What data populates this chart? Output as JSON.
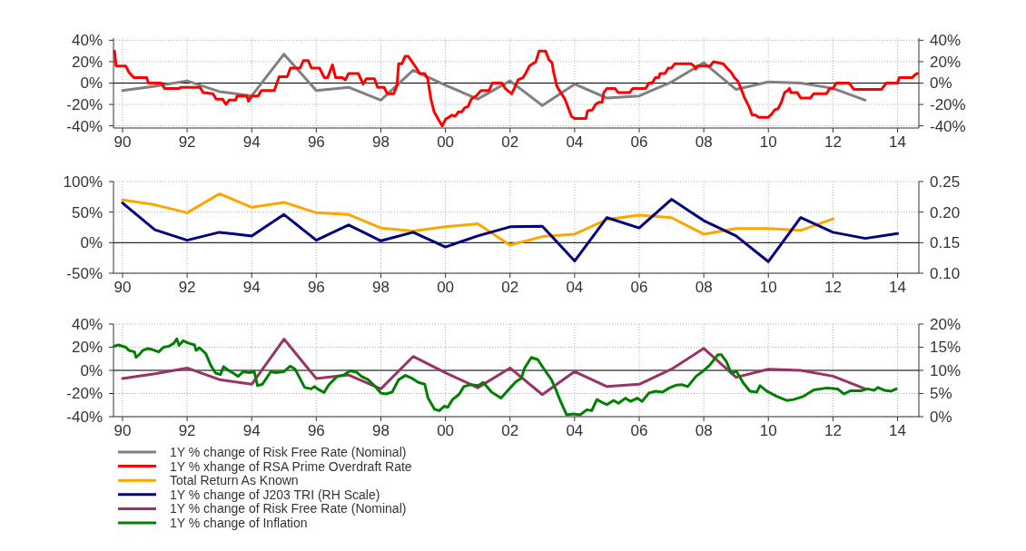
{
  "chart_data": [
    {
      "type": "line",
      "xlim": [
        1989.72,
        2014.66
      ],
      "xticks": [
        {
          "value": 1990,
          "label": "90"
        },
        {
          "value": 1992,
          "label": "92"
        },
        {
          "value": 1994,
          "label": "94"
        },
        {
          "value": 1996,
          "label": "96"
        },
        {
          "value": 1998,
          "label": "98"
        },
        {
          "value": 2000,
          "label": "00"
        },
        {
          "value": 2002,
          "label": "02"
        },
        {
          "value": 2004,
          "label": "04"
        },
        {
          "value": 2006,
          "label": "06"
        },
        {
          "value": 2008,
          "label": "08"
        },
        {
          "value": 2010,
          "label": "10"
        },
        {
          "value": 2012,
          "label": "12"
        },
        {
          "value": 2014,
          "label": "14"
        }
      ],
      "ylim": [
        -42,
        42
      ],
      "yticks": [
        {
          "value": -40,
          "label": "-40%"
        },
        {
          "value": -20,
          "label": "-20%"
        },
        {
          "value": 0,
          "label": "0%"
        },
        {
          "value": 20,
          "label": "20%"
        },
        {
          "value": 40,
          "label": "40%"
        }
      ],
      "y2lim": [
        -42,
        42
      ],
      "y2ticks": [
        {
          "value": -40,
          "label": "-40%"
        },
        {
          "value": -20,
          "label": "-20%"
        },
        {
          "value": 0,
          "label": "0%"
        },
        {
          "value": 20,
          "label": "20%"
        },
        {
          "value": 40,
          "label": "40%"
        }
      ],
      "grid": true,
      "legend": "bottom",
      "ref_lines": [
        {
          "axis": "y",
          "value": 0,
          "color": "#000000"
        }
      ],
      "series": [
        {
          "name": "1Y % change of Risk Free Rate (Nominal)",
          "color": "#808080",
          "x": [
            1990,
            1991,
            1992,
            1993,
            1994,
            1995,
            1996,
            1997,
            1998,
            1999,
            2000,
            2001,
            2002,
            2003,
            2004,
            2005,
            2006,
            2007,
            2008,
            2009,
            2010,
            2011,
            2012,
            2013
          ],
          "values": [
            -7,
            -3,
            2,
            -8,
            -12,
            27,
            -7,
            -4,
            -16,
            12,
            -2,
            -15,
            2,
            -21,
            -1,
            -14,
            -12,
            1,
            19,
            -6,
            1,
            0,
            -5,
            -16
          ]
        },
        {
          "name": "1Y % xhange of RSA Prime Overdraft Rate",
          "color": "#ff0000",
          "x": [
            1989.75,
            1989.8,
            1990.1,
            1990.2,
            1990.35,
            1990.75,
            1990.8,
            1991.2,
            1991.3,
            1991.75,
            1991.8,
            1992.4,
            1992.5,
            1992.8,
            1992.9,
            1993.1,
            1993.2,
            1993.3,
            1993.5,
            1993.55,
            1993.85,
            1993.9,
            1994,
            1994.2,
            1994.3,
            1994.7,
            1994.85,
            1995.1,
            1995.2,
            1995.5,
            1995.6,
            1995.75,
            1995.85,
            1996.1,
            1996.25,
            1996.35,
            1996.5,
            1996.6,
            1996.8,
            1996.9,
            1997,
            1997.3,
            1997.45,
            1997.55,
            1997.8,
            1997.9,
            1998.1,
            1998.2,
            1998.4,
            1998.5,
            1998.55,
            1998.65,
            1998.75,
            1998.85,
            1999.1,
            1999.2,
            1999.35,
            1999.45,
            1999.55,
            1999.65,
            1999.8,
            1999.9,
            2000,
            2000.1,
            2000.2,
            2000.3,
            2000.4,
            2000.5,
            2000.6,
            2000.7,
            2000.8,
            2000.95,
            2001.1,
            2001.35,
            2001.45,
            2001.75,
            2001.85,
            2002.05,
            2002.15,
            2002.25,
            2002.4,
            2002.5,
            2002.6,
            2002.7,
            2002.8,
            2002.9,
            2003.1,
            2003.2,
            2003.3,
            2003.35,
            2003.45,
            2003.55,
            2003.7,
            2003.8,
            2003.9,
            2004,
            2004.35,
            2004.4,
            2004.55,
            2004.65,
            2004.75,
            2004.85,
            2004.9,
            2005,
            2005.25,
            2005.35,
            2005.7,
            2005.8,
            2006.2,
            2006.3,
            2006.4,
            2006.5,
            2006.6,
            2006.65,
            2006.8,
            2006.9,
            2007,
            2007.1,
            2007.6,
            2007.7,
            2007.75,
            2007.8,
            2008.2,
            2008.3,
            2008.6,
            2008.75,
            2008.85,
            2008.95,
            2009.05,
            2009.15,
            2009.25,
            2009.4,
            2009.5,
            2009.6,
            2009.7,
            2010,
            2010.1,
            2010.2,
            2010.3,
            2010.4,
            2010.5,
            2010.6,
            2010.65,
            2010.7,
            2010.9,
            2011,
            2011.3,
            2011.4,
            2011.8,
            2011.9,
            2012,
            2012.1,
            2012.5,
            2012.65,
            2013.5,
            2013.65,
            2014,
            2014.05,
            2014.45,
            2014.55,
            2014.62
          ],
          "values": [
            30,
            16,
            16,
            10,
            5,
            5,
            0,
            0,
            -5,
            -5,
            -4,
            -4,
            -9,
            -10,
            -15,
            -15,
            -20,
            -16,
            -16,
            -12,
            -12,
            -17,
            -12,
            -12,
            -7,
            -7,
            6,
            6,
            14,
            14,
            21,
            21,
            14,
            14,
            5,
            5,
            17,
            5,
            5,
            3,
            9,
            9,
            -1,
            4,
            4,
            -4,
            -4,
            -10,
            -10,
            -2,
            18,
            18,
            25,
            25,
            14,
            9,
            9,
            4,
            -15,
            -27,
            -35,
            -40,
            -34,
            -32,
            -30,
            -31,
            -27,
            -27,
            -23,
            -22,
            -15,
            -12,
            -7,
            -7,
            0,
            0,
            -5,
            -10,
            -4,
            3,
            5,
            10,
            16,
            18,
            20,
            30,
            30,
            22,
            19,
            10,
            -3,
            -8,
            -15,
            -23,
            -31,
            -33,
            -33,
            -26,
            -25,
            -20,
            -18,
            -18,
            -9,
            -5,
            -5,
            -9,
            -9,
            -5,
            -5,
            0,
            0,
            5,
            5,
            9,
            9,
            14,
            14,
            18,
            18,
            16,
            13,
            16,
            16,
            20,
            18,
            13,
            10,
            5,
            2,
            -5,
            -13,
            -22,
            -30,
            -30,
            -32,
            -32,
            -29,
            -25,
            -24,
            -18,
            -9,
            -7,
            -5,
            -9,
            -9,
            -14,
            -14,
            -10,
            -10,
            -5,
            -5,
            0,
            0,
            -6,
            -6,
            0,
            0,
            5,
            5,
            8,
            9
          ]
        }
      ]
    },
    {
      "type": "line",
      "xlim": [
        1989.72,
        2014.66
      ],
      "xticks": [
        {
          "value": 1990,
          "label": "90"
        },
        {
          "value": 1992,
          "label": "92"
        },
        {
          "value": 1994,
          "label": "94"
        },
        {
          "value": 1996,
          "label": "96"
        },
        {
          "value": 1998,
          "label": "98"
        },
        {
          "value": 2000,
          "label": "00"
        },
        {
          "value": 2002,
          "label": "02"
        },
        {
          "value": 2004,
          "label": "04"
        },
        {
          "value": 2006,
          "label": "06"
        },
        {
          "value": 2008,
          "label": "08"
        },
        {
          "value": 2010,
          "label": "10"
        },
        {
          "value": 2012,
          "label": "12"
        },
        {
          "value": 2014,
          "label": "14"
        }
      ],
      "ylim": [
        -50,
        100
      ],
      "yticks": [
        {
          "value": -50,
          "label": "-50%"
        },
        {
          "value": 0,
          "label": "0%"
        },
        {
          "value": 50,
          "label": "50%"
        },
        {
          "value": 100,
          "label": "100%"
        }
      ],
      "y2lim": [
        0.1,
        0.25
      ],
      "y2ticks": [
        {
          "value": 0.1,
          "label": "0.10"
        },
        {
          "value": 0.15,
          "label": "0.15"
        },
        {
          "value": 0.2,
          "label": "0.20"
        },
        {
          "value": 0.25,
          "label": "0.25"
        }
      ],
      "grid": true,
      "legend": "bottom",
      "ref_lines": [
        {
          "axis": "y",
          "value": 0,
          "color": "#000000"
        }
      ],
      "series": [
        {
          "name": "Total Return As Known",
          "color": "#ffa500",
          "x": [
            1990,
            1991,
            1992,
            1993,
            1994,
            1995,
            1996,
            1997,
            1998,
            1999,
            2000,
            2001,
            2002,
            2003,
            2004,
            2005,
            2006,
            2007,
            2008,
            2009,
            2010,
            2011,
            2012
          ],
          "values": [
            70,
            62,
            49,
            80,
            58,
            66,
            49,
            46,
            24,
            19,
            26,
            31,
            -4,
            10,
            14,
            38,
            45,
            41,
            14,
            23,
            23,
            20,
            39
          ]
        },
        {
          "name": "1Y % change of  J203 TRI (RH Scale)",
          "color": "#000080",
          "axis": "y2",
          "x": [
            1990,
            1991,
            1992,
            1993,
            1994,
            1995,
            1996,
            1997,
            1998,
            1999,
            2000,
            2001,
            2002,
            2003,
            2004,
            2005,
            2006,
            2007,
            2008,
            2009,
            2010,
            2011,
            2012,
            2013,
            2014
          ],
          "values": [
            0.215,
            0.171,
            0.154,
            0.167,
            0.161,
            0.196,
            0.154,
            0.179,
            0.153,
            0.167,
            0.143,
            0.161,
            0.176,
            0.177,
            0.12,
            0.191,
            0.174,
            0.221,
            0.186,
            0.161,
            0.119,
            0.191,
            0.167,
            0.157,
            0.165
          ]
        }
      ]
    },
    {
      "type": "line",
      "xlim": [
        1989.72,
        2014.66
      ],
      "xticks": [
        {
          "value": 1990,
          "label": "90"
        },
        {
          "value": 1992,
          "label": "92"
        },
        {
          "value": 1994,
          "label": "94"
        },
        {
          "value": 1996,
          "label": "96"
        },
        {
          "value": 1998,
          "label": "98"
        },
        {
          "value": 2000,
          "label": "00"
        },
        {
          "value": 2002,
          "label": "02"
        },
        {
          "value": 2004,
          "label": "04"
        },
        {
          "value": 2006,
          "label": "06"
        },
        {
          "value": 2008,
          "label": "08"
        },
        {
          "value": 2010,
          "label": "10"
        },
        {
          "value": 2012,
          "label": "12"
        },
        {
          "value": 2014,
          "label": "14"
        }
      ],
      "ylim": [
        -40,
        40
      ],
      "yticks": [
        {
          "value": -40,
          "label": "-40%"
        },
        {
          "value": -20,
          "label": "-20%"
        },
        {
          "value": 0,
          "label": "0%"
        },
        {
          "value": 20,
          "label": "20%"
        },
        {
          "value": 40,
          "label": "40%"
        }
      ],
      "y2lim": [
        0,
        20
      ],
      "y2ticks": [
        {
          "value": 0,
          "label": "0%"
        },
        {
          "value": 5,
          "label": "5%"
        },
        {
          "value": 10,
          "label": "10%"
        },
        {
          "value": 15,
          "label": "15%"
        },
        {
          "value": 20,
          "label": "20%"
        }
      ],
      "grid": true,
      "legend": "bottom",
      "ref_lines": [
        {
          "axis": "y",
          "value": 0,
          "color": "#000000"
        }
      ],
      "series": [
        {
          "name": "1Y % change of Risk Free Rate (Nominal)",
          "color": "#993366",
          "x": [
            1990,
            1991,
            1992,
            1993,
            1994,
            1995,
            1996,
            1997,
            1998,
            1999,
            2000,
            2001,
            2002,
            2003,
            2004,
            2005,
            2006,
            2007,
            2008,
            2009,
            2010,
            2011,
            2012,
            2013
          ],
          "values": [
            -7,
            -3,
            2,
            -8,
            -12,
            27,
            -7,
            -4,
            -16,
            12,
            -2,
            -15,
            2,
            -21,
            -1,
            -14,
            -12,
            1,
            19,
            -6,
            1,
            0,
            -5,
            -16
          ]
        },
        {
          "name": "1Y % change of Inflation",
          "color": "#008000",
          "axis": "y2",
          "x": [
            1989.74,
            1989.87,
            1990.1,
            1990.2,
            1990.37,
            1990.42,
            1990.52,
            1990.62,
            1990.77,
            1990.92,
            1991.12,
            1991.27,
            1991.43,
            1991.58,
            1991.68,
            1991.75,
            1991.88,
            1992.03,
            1992.23,
            1992.28,
            1992.38,
            1992.58,
            1992.73,
            1992.88,
            1993.03,
            1993.13,
            1993.28,
            1993.43,
            1993.58,
            1993.73,
            1993.93,
            1994.08,
            1994.18,
            1994.33,
            1994.59,
            1994.74,
            1994.99,
            1995.19,
            1995.34,
            1995.49,
            1995.64,
            1995.84,
            1995.94,
            1996.09,
            1996.24,
            1996.39,
            1996.65,
            1996.85,
            1997.05,
            1997.25,
            1997.4,
            1997.6,
            1997.8,
            1998,
            1998.15,
            1998.35,
            1998.55,
            1998.76,
            1998.96,
            1999.16,
            1999.36,
            1999.46,
            1999.66,
            1999.81,
            1999.97,
            2000.07,
            2000.22,
            2000.42,
            2000.57,
            2000.77,
            2001.02,
            2001.17,
            2001.43,
            2001.72,
            2002,
            2002.19,
            2002.35,
            2002.45,
            2002.66,
            2002.86,
            2003.07,
            2003.28,
            2003.44,
            2003.54,
            2003.75,
            2003.96,
            2004.17,
            2004.38,
            2004.53,
            2004.69,
            2004.9,
            2005,
            2005.2,
            2005.36,
            2005.57,
            2005.73,
            2005.94,
            2006.09,
            2006.3,
            2006.51,
            2006.72,
            2006.93,
            2007.14,
            2007.34,
            2007.5,
            2007.76,
            2007.97,
            2008.18,
            2008.44,
            2008.54,
            2008.7,
            2008.85,
            2009.01,
            2009.22,
            2009.43,
            2009.64,
            2009.74,
            2009.95,
            2010.26,
            2010.57,
            2010.78,
            2011.09,
            2011.41,
            2011.82,
            2012.14,
            2012.34,
            2012.55,
            2012.86,
            2013.07,
            2013.28,
            2013.39,
            2013.59,
            2013.8,
            2013.96
          ],
          "values": [
            15.2,
            15.5,
            15,
            14.3,
            14,
            12.8,
            13.4,
            14.3,
            14.7,
            14.5,
            14,
            15,
            15.2,
            15.8,
            16.8,
            15.4,
            16.4,
            15.9,
            15.5,
            14.3,
            14.9,
            13.6,
            11.1,
            9.4,
            9.1,
            10.8,
            10,
            9.4,
            8.7,
            9.7,
            9.5,
            9.7,
            6.7,
            7,
            9.7,
            9.5,
            9.7,
            10.9,
            10.3,
            8.3,
            6.3,
            6,
            6.5,
            5.8,
            5.2,
            6.9,
            8.7,
            9,
            9.9,
            9.6,
            8.7,
            8,
            6.7,
            5.1,
            4.9,
            5.3,
            8,
            8.9,
            8.3,
            7.4,
            7,
            4,
            1.6,
            1.3,
            2.3,
            2,
            3.7,
            4.8,
            6.5,
            6.9,
            6.7,
            7.4,
            5.3,
            4,
            6.2,
            7.6,
            8.3,
            10.5,
            12.8,
            12.3,
            10.1,
            8,
            5.5,
            3.7,
            0.4,
            0.6,
            0.4,
            1.5,
            1.3,
            3.7,
            2.9,
            2.6,
            3.5,
            2.9,
            4,
            3.3,
            4,
            3.3,
            5.1,
            5.5,
            5.3,
            6.2,
            6.8,
            6.9,
            6.5,
            8.7,
            9.8,
            11.1,
            13.4,
            13.4,
            11.9,
            9.4,
            9.8,
            7.3,
            5.5,
            5.3,
            6.7,
            5.5,
            4.4,
            3.5,
            3.7,
            4.4,
            5.8,
            6.2,
            6,
            4.9,
            5.6,
            5.6,
            6,
            5.7,
            6.3,
            5.7,
            5.5,
            6
          ]
        }
      ]
    }
  ]
}
